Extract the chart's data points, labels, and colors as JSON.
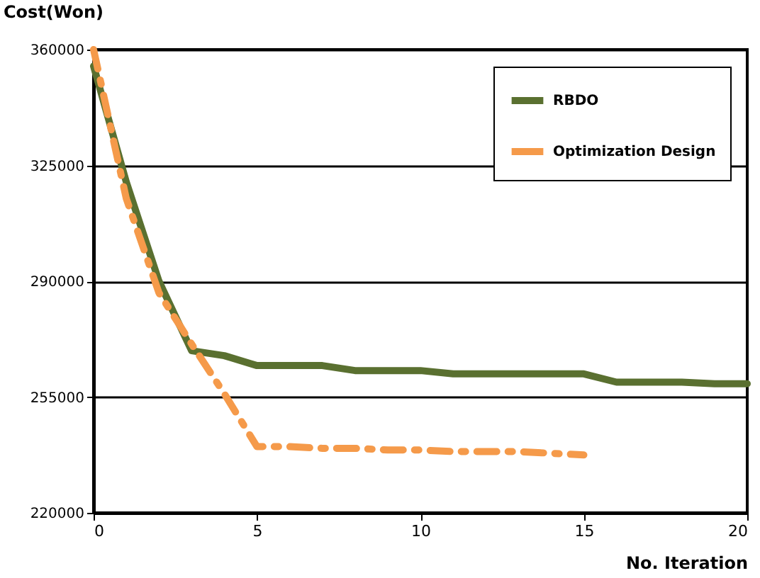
{
  "chart_data": {
    "type": "line",
    "xlabel": "No. Iteration",
    "ylabel": "Cost(Won)",
    "x": [
      0,
      1,
      2,
      3,
      4,
      5,
      6,
      7,
      8,
      9,
      10,
      11,
      12,
      13,
      14,
      15,
      16,
      17,
      18,
      19,
      20
    ],
    "series": [
      {
        "name": "RBDO",
        "color": "#5a7030",
        "line_style": "solid",
        "values": [
          355000,
          320000,
          290000,
          269000,
          267500,
          264500,
          264500,
          264500,
          263000,
          263000,
          263000,
          262000,
          262000,
          262000,
          262000,
          262000,
          259500,
          259500,
          259500,
          259000,
          259000
        ]
      },
      {
        "name": "Optimization Design",
        "color": "#f59a4a",
        "line_style": "dashed",
        "x": [
          0,
          1,
          2,
          3,
          4,
          5,
          6,
          7,
          8,
          9,
          10,
          11,
          12,
          13,
          14,
          15
        ],
        "values": [
          360000,
          315000,
          286500,
          271000,
          256000,
          240000,
          240000,
          239500,
          239500,
          239000,
          239000,
          238500,
          238500,
          238500,
          238000,
          237500
        ]
      }
    ],
    "xlim": [
      0,
      20
    ],
    "xticks": [
      0,
      5,
      10,
      15,
      20
    ],
    "ylim": [
      220000,
      360000
    ],
    "yticks": [
      220000,
      255000,
      290000,
      325000,
      360000
    ],
    "grid": "y",
    "legend": "top right",
    "marker": "none"
  }
}
